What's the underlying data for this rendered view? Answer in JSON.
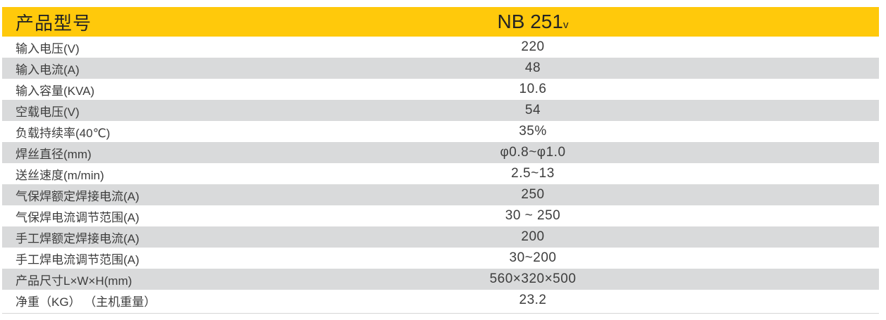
{
  "colors": {
    "header_bg": "#FFC90B",
    "stripe_bg": "#D9DADB",
    "header_text": "#242424",
    "text": "#3d3d3d",
    "bottom_rule": "#d6d6d6"
  },
  "table": {
    "header": {
      "label": "产品型号",
      "model": "NB 251",
      "model_suffix": "v"
    },
    "rows": [
      {
        "label": "输入电压(V)",
        "value": "220"
      },
      {
        "label": "输入电流(A)",
        "value": "48"
      },
      {
        "label": "输入容量(KVA)",
        "value": "10.6"
      },
      {
        "label": "空载电压(V)",
        "value": "54"
      },
      {
        "label": "负载持续率(40℃)",
        "value": "35%"
      },
      {
        "label": "焊丝直径(mm)",
        "value": "φ0.8~φ1.0"
      },
      {
        "label": "送丝速度(m/min)",
        "value": "2.5~13"
      },
      {
        "label": "气保焊额定焊接电流(A)",
        "value": "250"
      },
      {
        "label": "气保焊电流调节范围(A)",
        "value": "30 ~ 250"
      },
      {
        "label": "手工焊额定焊接电流(A)",
        "value": "200"
      },
      {
        "label": "手工焊电流调节范围(A)",
        "value": "30~200"
      },
      {
        "label": "产品尺寸L×W×H(mm)",
        "value": "560×320×500"
      },
      {
        "label": "净重（KG） （主机重量）",
        "value": "23.2"
      }
    ]
  },
  "chart_data": {
    "type": "table",
    "columns": [
      "产品型号",
      "NB 251v"
    ],
    "rows": [
      [
        "输入电压(V)",
        "220"
      ],
      [
        "输入电流(A)",
        "48"
      ],
      [
        "输入容量(KVA)",
        "10.6"
      ],
      [
        "空载电压(V)",
        "54"
      ],
      [
        "负载持续率(40℃)",
        "35%"
      ],
      [
        "焊丝直径(mm)",
        "φ0.8~φ1.0"
      ],
      [
        "送丝速度(m/min)",
        "2.5~13"
      ],
      [
        "气保焊额定焊接电流(A)",
        "250"
      ],
      [
        "气保焊电流调节范围(A)",
        "30 ~ 250"
      ],
      [
        "手工焊额定焊接电流(A)",
        "200"
      ],
      [
        "手工焊电流调节范围(A)",
        "30~200"
      ],
      [
        "产品尺寸L×W×H(mm)",
        "560×320×500"
      ],
      [
        "净重（KG） （主机重量）",
        "23.2"
      ]
    ],
    "layout": {
      "header_fill": "#FFC90B",
      "stripe_fill": "#D9DADB",
      "value_alignment": "center"
    }
  }
}
